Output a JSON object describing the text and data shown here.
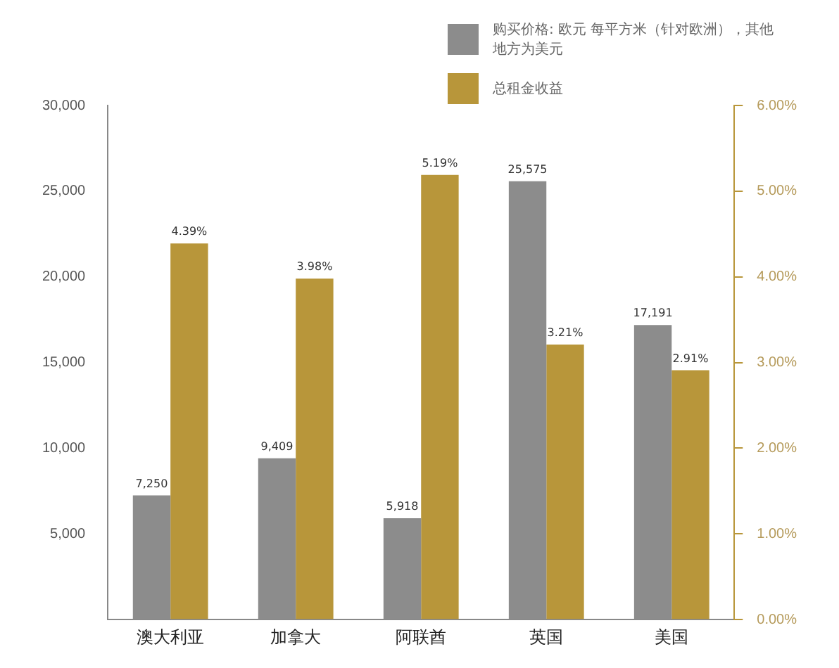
{
  "chart_data": {
    "type": "bar",
    "categories": [
      "澳大利亚",
      "加拿大",
      "阿联酋",
      "英国",
      "美国"
    ],
    "series": [
      {
        "name": "购买价格: 欧元 每平方米（针对欧洲），其他地方为美元",
        "color": "#8c8c8c",
        "values": [
          7250,
          9409,
          5918,
          25575,
          17191
        ],
        "value_labels": [
          "7,250",
          "9,409",
          "5,918",
          "25,575",
          "17,191"
        ]
      },
      {
        "name": "总租金收益",
        "color": "#b8963a",
        "axis": "y2",
        "values": [
          4.39,
          3.98,
          5.19,
          3.21,
          2.91
        ],
        "value_labels": [
          "4.39%",
          "3.98%",
          "5.19%",
          "3.21%",
          "2.91%"
        ]
      }
    ],
    "ylim": [
      0,
      30000
    ],
    "yticks": [
      {
        "value": 0,
        "label": null
      },
      {
        "value": 5000,
        "label": "5,000"
      },
      {
        "value": 10000,
        "label": "10,000"
      },
      {
        "value": 15000,
        "label": "15,000"
      },
      {
        "value": 20000,
        "label": "20,000"
      },
      {
        "value": 25000,
        "label": "25,000"
      },
      {
        "value": 30000,
        "label": "30,000"
      }
    ],
    "y2lim": [
      0,
      6
    ],
    "y2ticks": [
      {
        "value": 0,
        "label": "0.00%"
      },
      {
        "value": 1,
        "label": "1.00%"
      },
      {
        "value": 2,
        "label": "2.00%"
      },
      {
        "value": 3,
        "label": "3.00%"
      },
      {
        "value": 4,
        "label": "4.00%"
      },
      {
        "value": 5,
        "label": "5.00%"
      },
      {
        "value": 6,
        "label": "6.00%"
      }
    ],
    "grid": false,
    "legend": "top right"
  }
}
